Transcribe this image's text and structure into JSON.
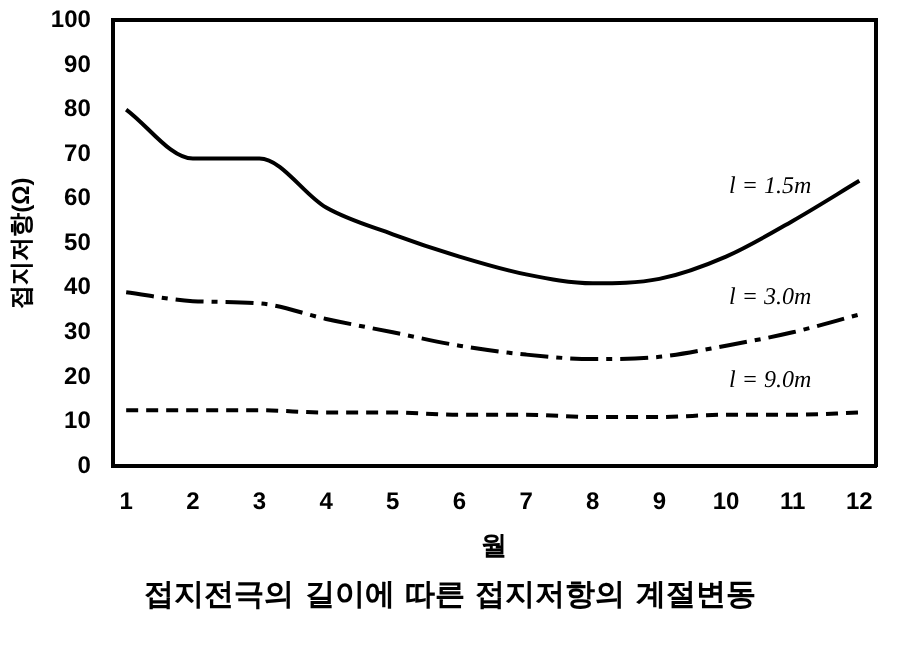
{
  "chart_data": {
    "type": "line",
    "title": "접지전극의 길이에 따른 접지저항의 계절변동",
    "xlabel": "월",
    "ylabel": "접지저항(Ω)",
    "x": [
      1,
      2,
      3,
      4,
      5,
      6,
      7,
      8,
      9,
      10,
      11,
      12
    ],
    "xlim": [
      0.8,
      12.25
    ],
    "xticks": [
      1,
      2,
      3,
      4,
      5,
      6,
      7,
      8,
      9,
      10,
      11,
      12
    ],
    "ylim": [
      0,
      100
    ],
    "yticks": [
      0,
      10,
      20,
      30,
      40,
      50,
      60,
      70,
      80,
      90,
      100
    ],
    "grid": false,
    "legend": false,
    "marker": "none",
    "series": [
      {
        "name": "l = 1.5m",
        "color": "#000000",
        "line_style": "solid",
        "values": [
          80,
          69,
          69,
          58,
          52,
          47,
          43,
          41,
          42,
          47,
          55,
          64
        ]
      },
      {
        "name": "l = 3.0m",
        "color": "#000000",
        "line_style": "dashed",
        "values": [
          39,
          37,
          36.5,
          33,
          30,
          27,
          25,
          24,
          24.5,
          27,
          30,
          34
        ]
      },
      {
        "name": "l = 9.0m",
        "color": "#000000",
        "line_style": "dotted",
        "values": [
          12.5,
          12.5,
          12.5,
          12,
          12,
          11.5,
          11.5,
          11,
          11,
          11.5,
          11.5,
          12
        ]
      }
    ]
  }
}
